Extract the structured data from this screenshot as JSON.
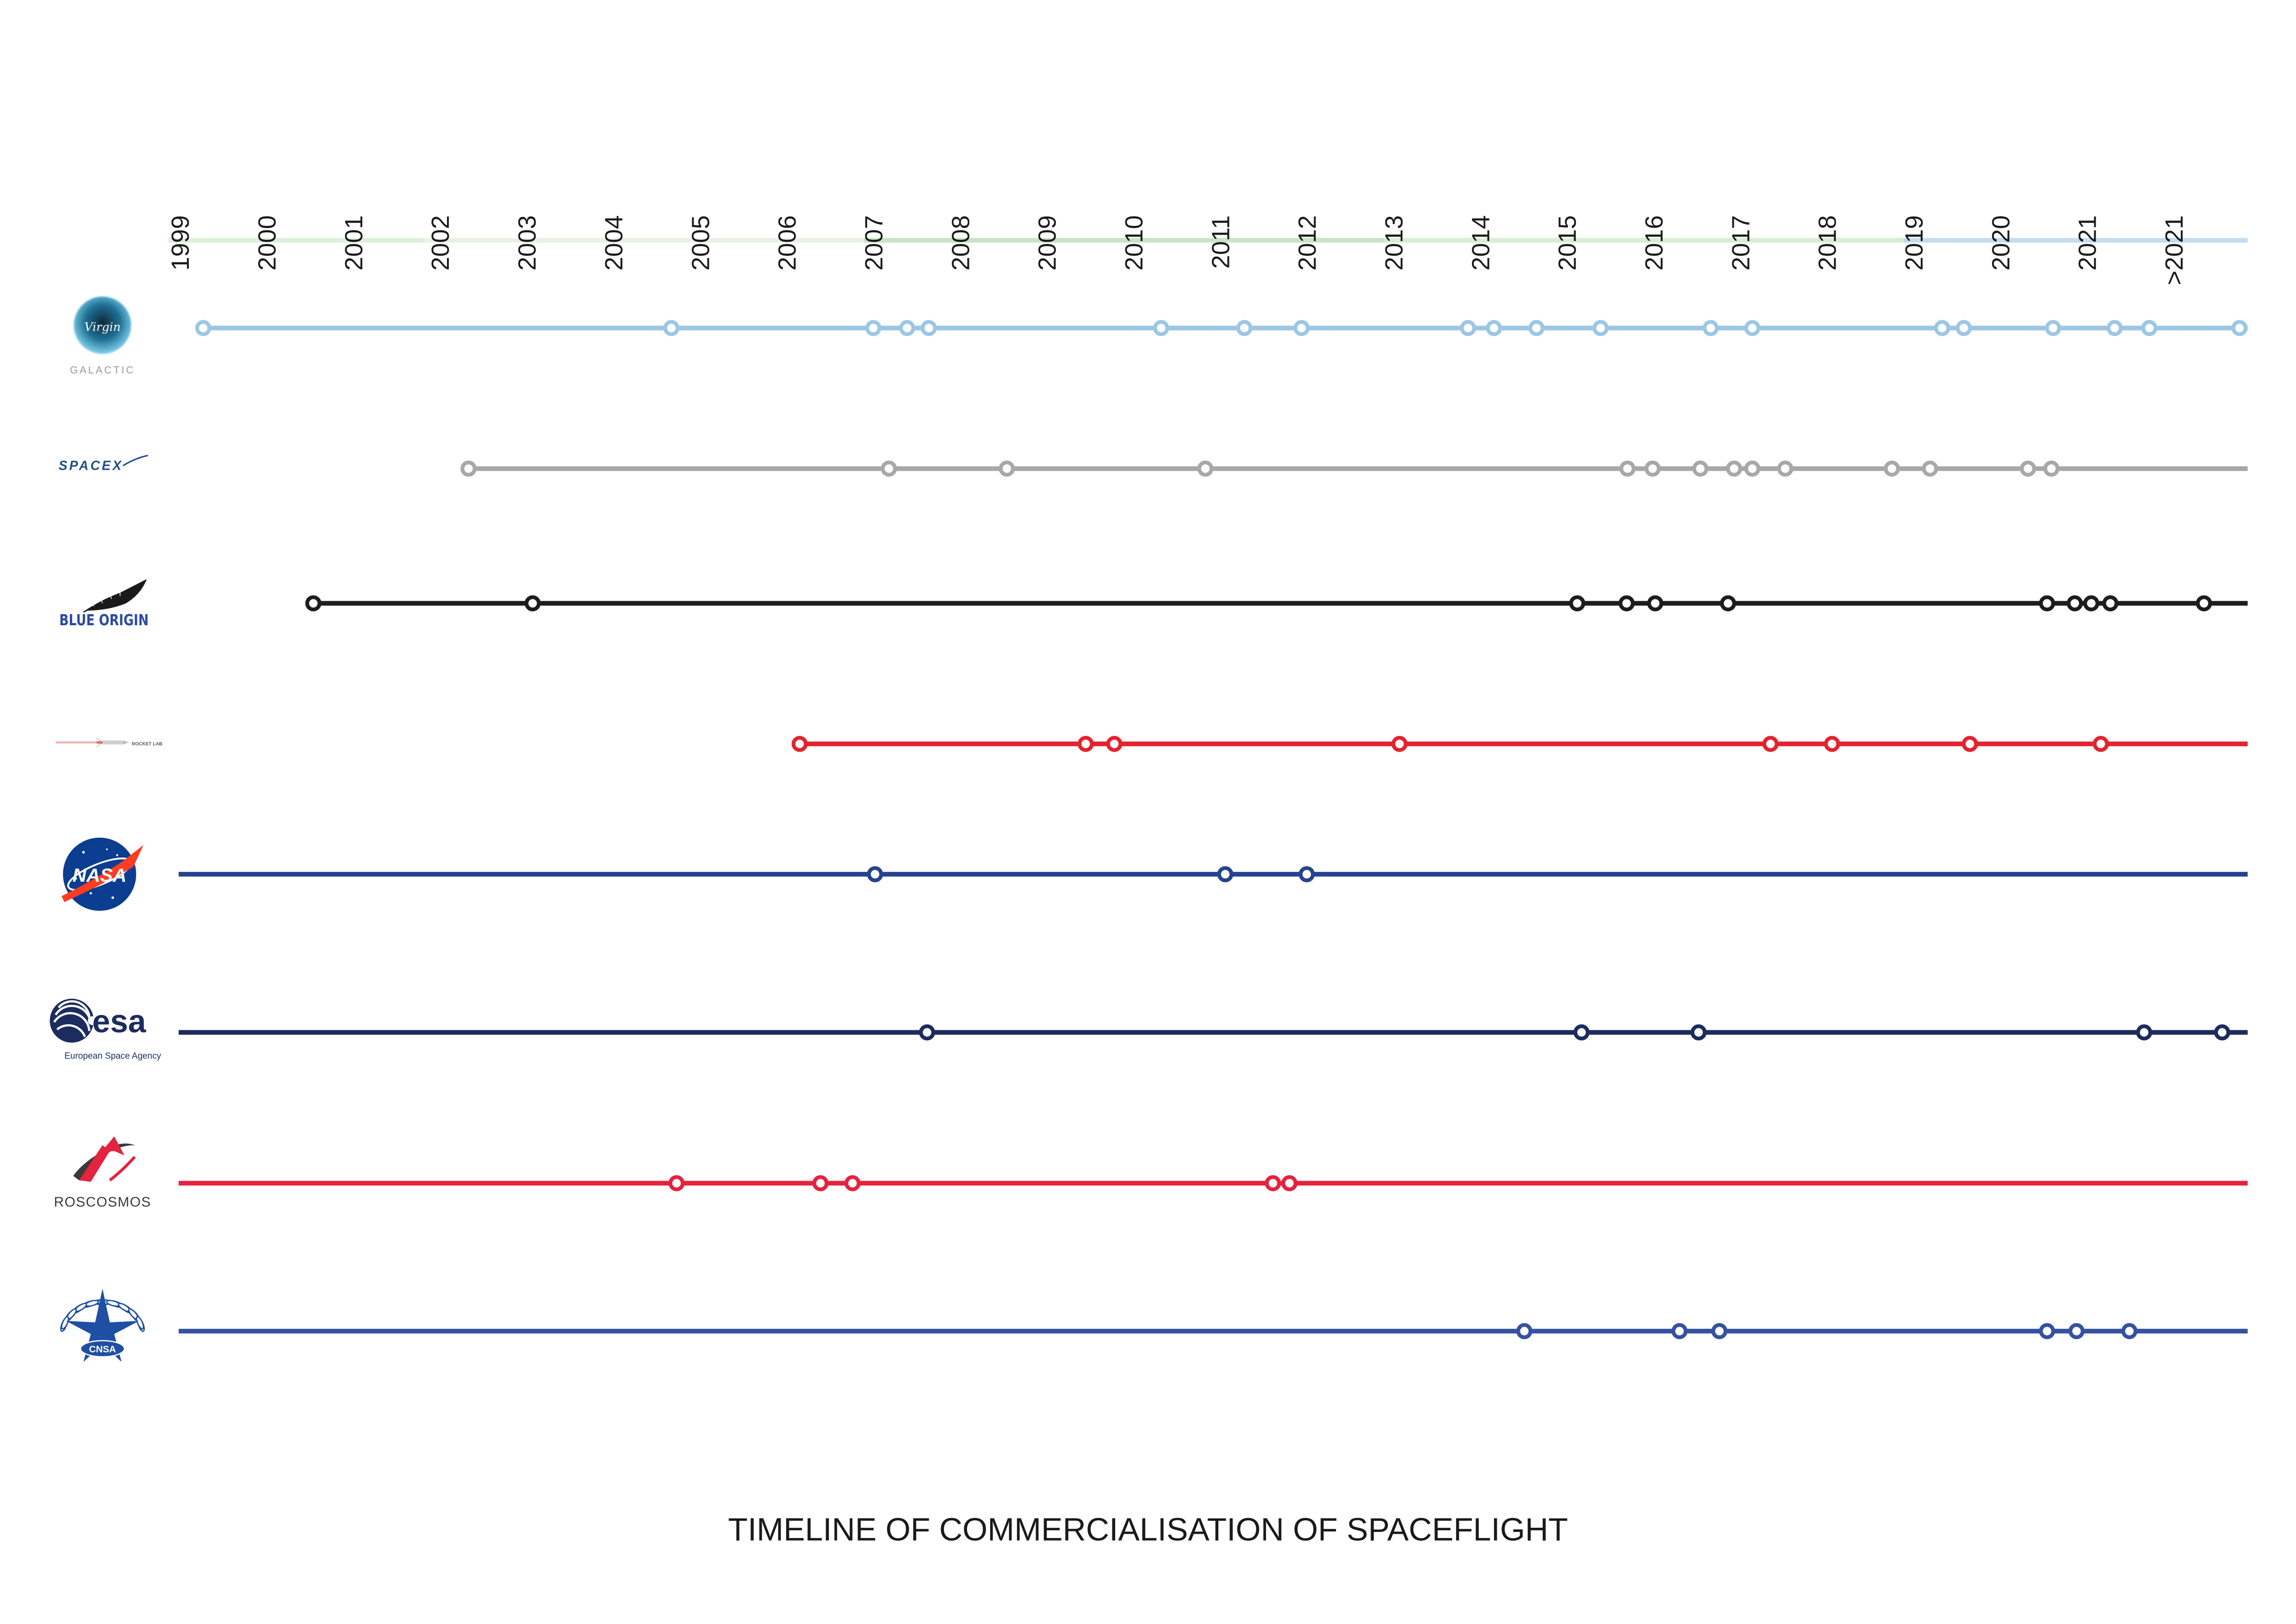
{
  "title": "TIMELINE OF COMMERCIALISATION OF SPACEFLIGHT",
  "logos": {
    "virgin_galactic": {
      "script": "Virgin",
      "wordmark": "GALACTIC",
      "color": "#2a6f9a"
    },
    "spacex": {
      "wordmark": "SPACEX",
      "color": "#1f4e8c"
    },
    "blue_origin": {
      "wordmark": "BLUE ORIGIN",
      "color": "#2c4aa0"
    },
    "rocket_lab": {
      "wordmark": "ROCKET LAB",
      "color": "#e3232e"
    },
    "nasa": {
      "wordmark": "NASA",
      "color": "#0b3d91",
      "accent": "#fc3d21"
    },
    "esa": {
      "wordmark": "esa",
      "subtitle": "European Space Agency",
      "color": "#1d2c5e"
    },
    "roscosmos": {
      "wordmark": "ROSCOSMOS",
      "color": "#e4233e"
    },
    "cnsa": {
      "wordmark": "CNSA",
      "color": "#1f4fa3"
    }
  },
  "chart_data": {
    "type": "line",
    "title": "TIMELINE OF COMMERCIALISATION OF SPACEFLIGHT",
    "xlabel": "",
    "ylabel": "",
    "categories": [
      "1999",
      "2000",
      "2001",
      "2002",
      "2003",
      "2004",
      "2005",
      "2006",
      "2007",
      "2008",
      "2009",
      "2010",
      "2011",
      "2012",
      "2013",
      "2014",
      "2015",
      "2016",
      "2017",
      "2018",
      "2019",
      "2020",
      "2021",
      ">2021"
    ],
    "xlim": [
      1999,
      2023
    ],
    "axis_band_colors": [
      "#dfeedd",
      "#e7f2e4",
      "#c9e3c6",
      "#dcebd9",
      "#c5dcee"
    ],
    "legend": "logos at left of each row",
    "grid": false,
    "series": [
      {
        "name": "Virgin Galactic",
        "color": "#9cc7e4",
        "events": [
          1999.25,
          2004.65,
          2006.98,
          2007.37,
          2007.62,
          2010.3,
          2011.26,
          2011.92,
          2013.84,
          2014.14,
          2014.63,
          2015.37,
          2016.64,
          2017.12,
          2019.31,
          2019.56,
          2020.59,
          2021.3,
          2021.7,
          2022.74
        ]
      },
      {
        "name": "SpaceX",
        "color": "#a8a8a8",
        "events": [
          2002.31,
          2007.16,
          2008.52,
          2010.81,
          2015.68,
          2015.97,
          2016.52,
          2016.91,
          2017.12,
          2017.5,
          2018.73,
          2019.17,
          2020.3,
          2020.57
        ]
      },
      {
        "name": "Blue Origin",
        "color": "#1d1d1f",
        "events": [
          2000.52,
          2003.05,
          2015.1,
          2015.67,
          2016.0,
          2016.84,
          2020.52,
          2020.84,
          2021.03,
          2021.25,
          2022.33
        ]
      },
      {
        "name": "Rocket Lab",
        "color": "#e3232e",
        "events": [
          2006.13,
          2009.43,
          2009.76,
          2013.05,
          2017.33,
          2018.04,
          2019.63,
          2021.14
        ]
      },
      {
        "name": "NASA",
        "color": "#25438f",
        "events": [
          2007.0,
          2011.04,
          2011.98
        ]
      },
      {
        "name": "ESA",
        "color": "#1d2c5e",
        "events": [
          2007.6,
          2015.15,
          2016.5,
          2021.64,
          2022.54
        ]
      },
      {
        "name": "Roscosmos",
        "color": "#e4233e",
        "events": [
          2004.71,
          2006.37,
          2006.74,
          2011.59,
          2011.78
        ]
      },
      {
        "name": "CNSA",
        "color": "#3552a0",
        "events": [
          2014.49,
          2016.28,
          2016.74,
          2020.52,
          2020.86,
          2021.47
        ]
      }
    ]
  }
}
